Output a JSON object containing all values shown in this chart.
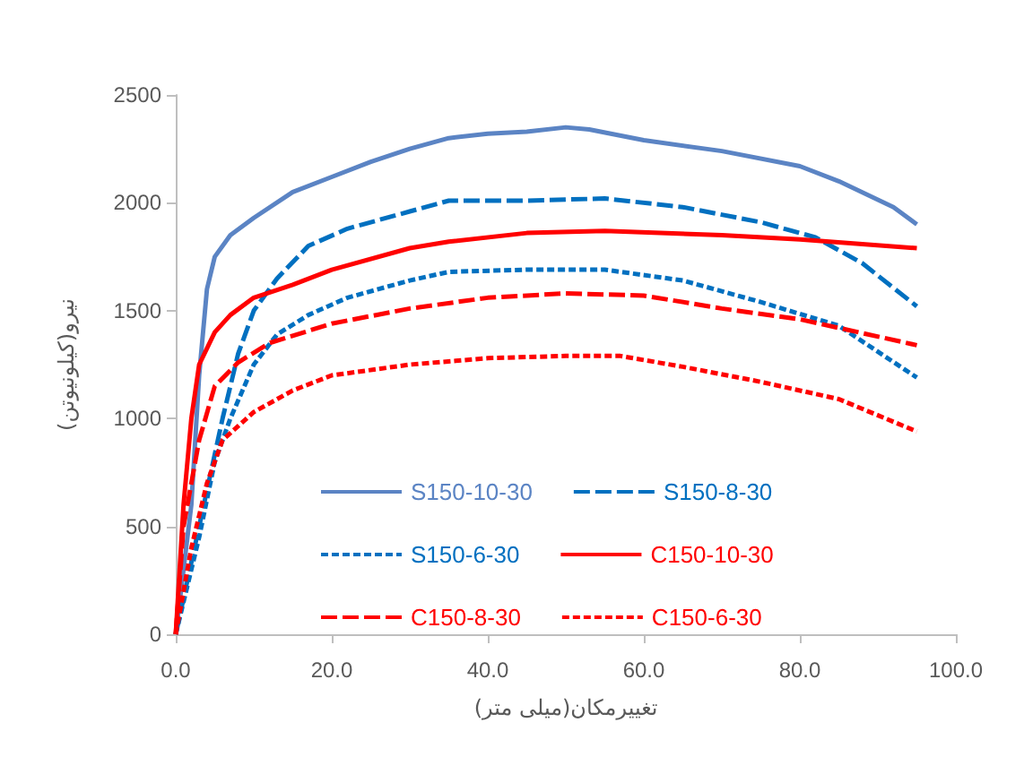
{
  "chart_data": {
    "type": "line",
    "xlabel": "تغییرمکان(میلی متر)",
    "ylabel": "نیرو(کیلونیوتن)",
    "xlim": [
      0,
      100
    ],
    "xticks": [
      {
        "value": 0,
        "label": "0.0"
      },
      {
        "value": 20,
        "label": "20.0"
      },
      {
        "value": 40,
        "label": "40.0"
      },
      {
        "value": 60,
        "label": "60.0"
      },
      {
        "value": 80,
        "label": "80.0"
      },
      {
        "value": 100,
        "label": "100.0"
      }
    ],
    "ylim": [
      0,
      2500
    ],
    "yticks": [
      0,
      500,
      1000,
      1500,
      2000,
      2500
    ],
    "grid": false,
    "legend": "bottom",
    "marker": "none",
    "series": [
      {
        "name": "S150-10-30",
        "color": "#5b84c4",
        "line_style": "solid",
        "x": [
          0,
          2,
          3,
          4,
          5,
          7,
          10,
          15,
          20,
          25,
          30,
          35,
          40,
          45,
          50,
          53,
          60,
          70,
          80,
          85,
          92,
          95
        ],
        "values": [
          0,
          600,
          1200,
          1600,
          1750,
          1850,
          1930,
          2050,
          2120,
          2190,
          2250,
          2300,
          2320,
          2330,
          2350,
          2340,
          2290,
          2240,
          2170,
          2100,
          1980,
          1900
        ]
      },
      {
        "name": "S150-8-30",
        "color": "#0070c0",
        "line_style": "dashed",
        "x": [
          0,
          3,
          6,
          8,
          10,
          13,
          17,
          22,
          30,
          35,
          45,
          55,
          65,
          75,
          82,
          88,
          95
        ],
        "values": [
          0,
          500,
          1000,
          1300,
          1500,
          1650,
          1800,
          1880,
          1960,
          2010,
          2010,
          2020,
          1980,
          1910,
          1840,
          1720,
          1520
        ]
      },
      {
        "name": "S150-6-30",
        "color": "#0070c0",
        "line_style": "dotted",
        "x": [
          0,
          3,
          5,
          7,
          10,
          13,
          17,
          22,
          30,
          35,
          45,
          55,
          65,
          75,
          85,
          95
        ],
        "values": [
          0,
          450,
          800,
          1000,
          1250,
          1390,
          1480,
          1560,
          1640,
          1680,
          1690,
          1690,
          1640,
          1540,
          1430,
          1190
        ]
      },
      {
        "name": "C150-10-30",
        "color": "#ff0000",
        "line_style": "solid",
        "x": [
          0,
          1,
          2,
          3,
          5,
          7,
          10,
          15,
          20,
          30,
          35,
          45,
          55,
          70,
          80,
          95
        ],
        "values": [
          0,
          600,
          1000,
          1250,
          1400,
          1480,
          1560,
          1620,
          1690,
          1790,
          1820,
          1860,
          1870,
          1850,
          1830,
          1790
        ]
      },
      {
        "name": "C150-8-30",
        "color": "#ff0000",
        "line_style": "dashed",
        "x": [
          0,
          1,
          3,
          5,
          8,
          12,
          20,
          30,
          40,
          50,
          60,
          70,
          80,
          95
        ],
        "values": [
          0,
          500,
          900,
          1150,
          1260,
          1350,
          1440,
          1510,
          1560,
          1580,
          1570,
          1510,
          1460,
          1340
        ]
      },
      {
        "name": "C150-6-30",
        "color": "#ff0000",
        "line_style": "dotted",
        "x": [
          0,
          2,
          4,
          6,
          10,
          15,
          20,
          30,
          40,
          50,
          57,
          65,
          75,
          85,
          95
        ],
        "values": [
          0,
          400,
          700,
          900,
          1030,
          1130,
          1200,
          1250,
          1280,
          1290,
          1290,
          1240,
          1170,
          1090,
          940
        ]
      }
    ]
  }
}
